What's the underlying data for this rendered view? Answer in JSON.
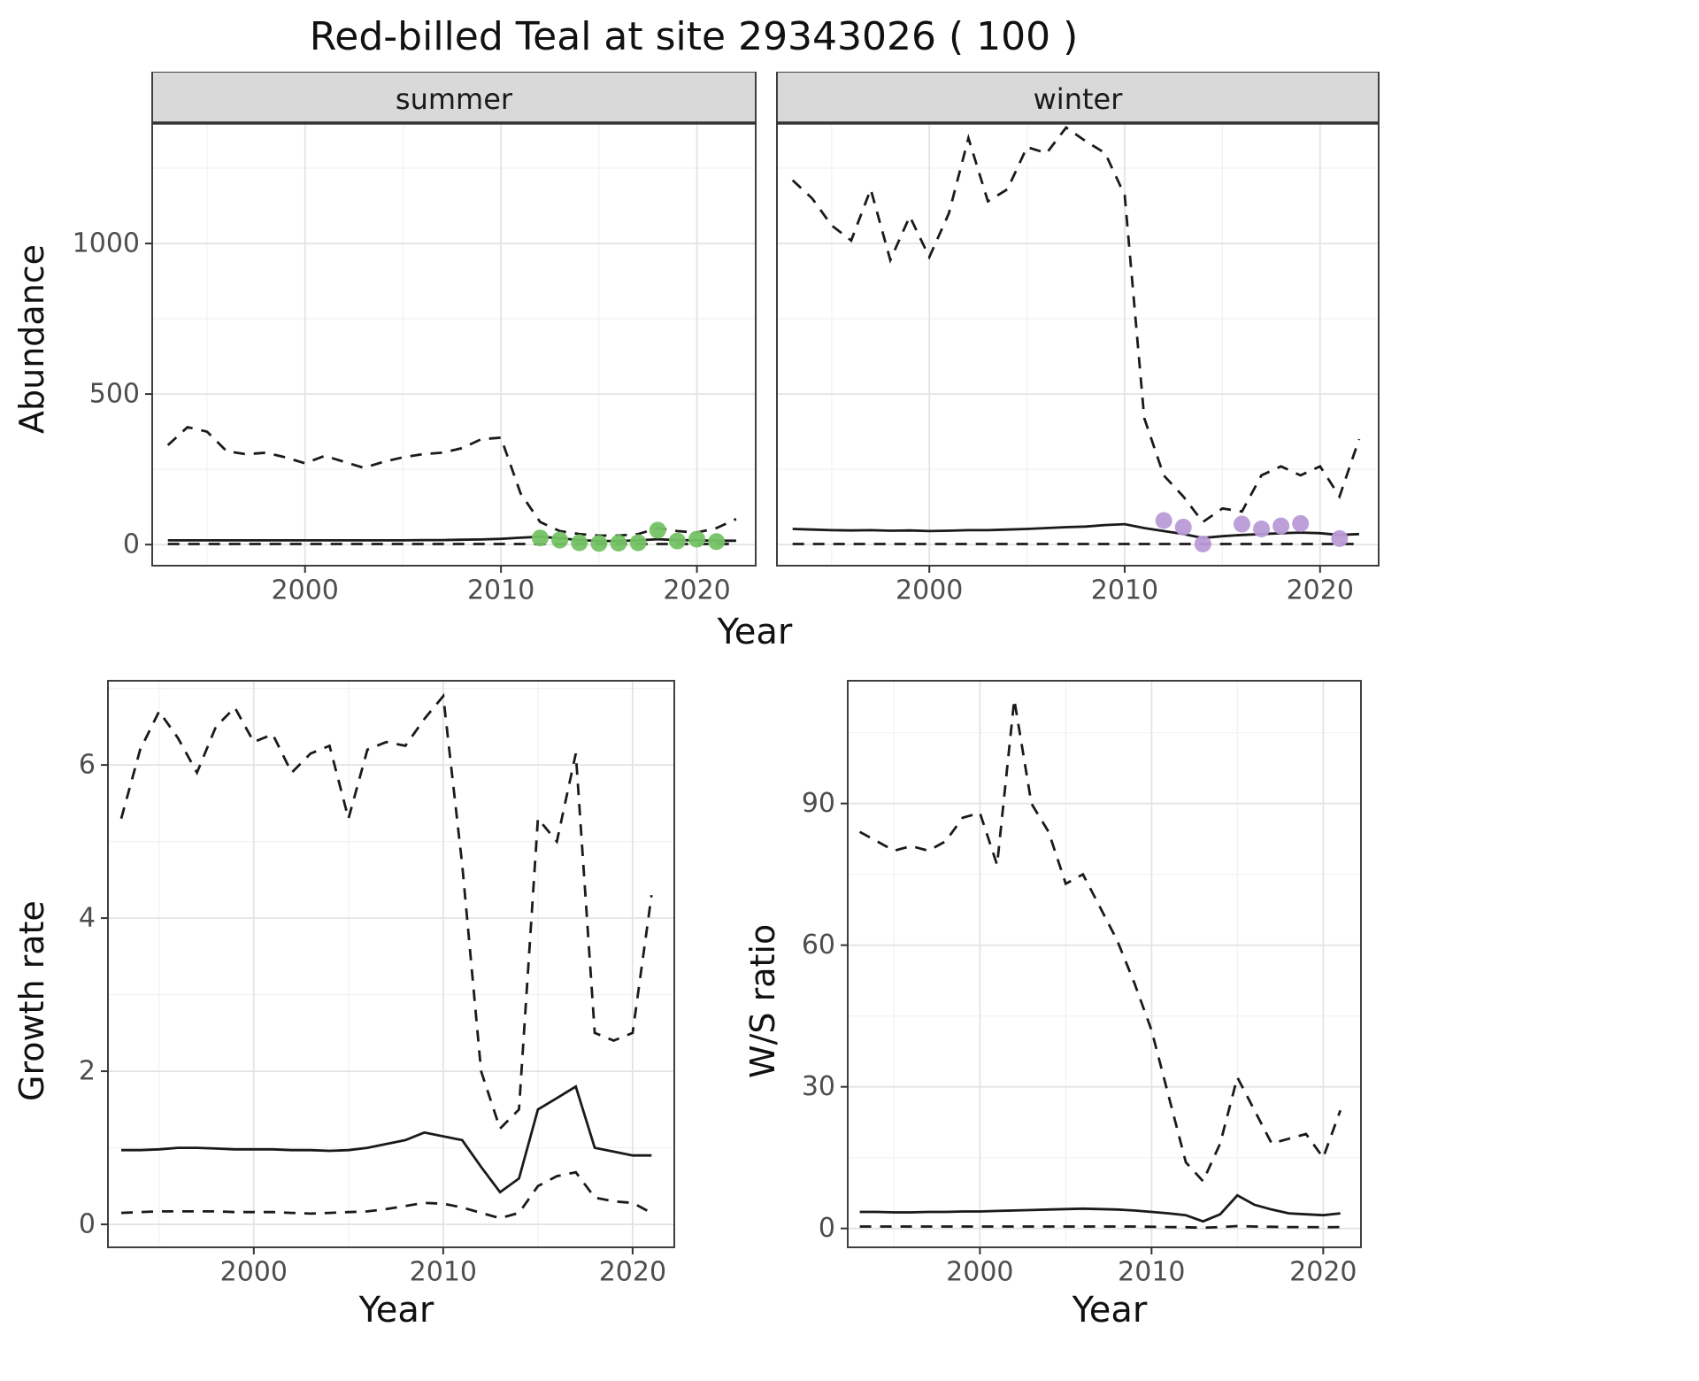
{
  "title": "Red-billed Teal at site 29343026 ( 100 )",
  "colors": {
    "line": "#1a1a1a",
    "grid_major": "#e4e4e4",
    "grid_minor": "#f2f2f2",
    "strip_bg": "#d9d9d9",
    "panel_border": "#3f3f3f",
    "tick_mark": "#333333",
    "tick_text": "#4d4d4d",
    "summer_points": "#74c365",
    "winter_points": "#b99bd8"
  },
  "axis": {
    "top_ylabel": "Abundance",
    "top_xlabel": "Year",
    "bottom_left_ylabel": "Growth rate",
    "bottom_left_xlabel": "Year",
    "bottom_right_ylabel": "W/S ratio",
    "bottom_right_xlabel": "Year"
  },
  "chart_data": [
    {
      "id": "abundance-summer",
      "type": "line",
      "facet_label": "summer",
      "xlabel": "Year",
      "ylabel": "Abundance",
      "xlim": [
        1992.2,
        2023.0
      ],
      "ylim": [
        -70,
        1400
      ],
      "xticks": [
        2000,
        2010,
        2020
      ],
      "yticks": [
        0,
        500,
        1000
      ],
      "x": [
        1993,
        1994,
        1995,
        1996,
        1997,
        1998,
        1999,
        2000,
        2001,
        2002,
        2003,
        2004,
        2005,
        2006,
        2007,
        2008,
        2009,
        2010,
        2011,
        2012,
        2013,
        2014,
        2015,
        2016,
        2017,
        2018,
        2019,
        2020,
        2021,
        2022
      ],
      "series": [
        {
          "name": "upper_ci",
          "linetype": "dashed",
          "values": [
            330,
            390,
            375,
            310,
            300,
            305,
            290,
            270,
            295,
            275,
            255,
            275,
            290,
            300,
            305,
            320,
            350,
            355,
            170,
            75,
            45,
            35,
            30,
            30,
            35,
            55,
            45,
            40,
            55,
            85
          ]
        },
        {
          "name": "estimate",
          "linetype": "solid",
          "values": [
            14,
            14,
            14,
            14,
            14,
            14,
            14,
            14,
            14,
            14,
            14,
            14,
            14,
            15,
            15,
            16,
            17,
            19,
            23,
            26,
            21,
            15,
            12,
            12,
            14,
            18,
            15,
            14,
            13,
            13
          ]
        },
        {
          "name": "lower_ci",
          "linetype": "dashed",
          "values": [
            2,
            2,
            2,
            2,
            2,
            2,
            2,
            2,
            2,
            2,
            2,
            2,
            2,
            2,
            2,
            2,
            2,
            2,
            2,
            2,
            2,
            2,
            2,
            2,
            2,
            2,
            2,
            2,
            2,
            2
          ]
        }
      ],
      "points": {
        "name": "observed-counts",
        "color_key": "summer_points",
        "x": [
          2012,
          2013,
          2014,
          2015,
          2016,
          2017,
          2018,
          2019,
          2020,
          2021
        ],
        "y": [
          22,
          15,
          6,
          4,
          5,
          6,
          48,
          12,
          18,
          10
        ]
      }
    },
    {
      "id": "abundance-winter",
      "type": "line",
      "facet_label": "winter",
      "xlabel": "Year",
      "ylabel": "Abundance",
      "xlim": [
        1992.2,
        2023.0
      ],
      "ylim": [
        -70,
        1400
      ],
      "xticks": [
        2000,
        2010,
        2020
      ],
      "yticks": [
        0,
        500,
        1000
      ],
      "x": [
        1993,
        1994,
        1995,
        1996,
        1997,
        1998,
        1999,
        2000,
        2001,
        2002,
        2003,
        2004,
        2005,
        2006,
        2007,
        2008,
        2009,
        2010,
        2011,
        2012,
        2013,
        2014,
        2015,
        2016,
        2017,
        2018,
        2019,
        2020,
        2021,
        2022
      ],
      "series": [
        {
          "name": "upper_ci",
          "linetype": "dashed",
          "values": [
            1210,
            1150,
            1060,
            1010,
            1180,
            945,
            1090,
            955,
            1100,
            1350,
            1140,
            1180,
            1320,
            1300,
            1385,
            1340,
            1300,
            1160,
            420,
            230,
            160,
            75,
            120,
            110,
            230,
            260,
            230,
            260,
            160,
            350
          ]
        },
        {
          "name": "estimate",
          "linetype": "solid",
          "values": [
            52,
            50,
            48,
            47,
            48,
            46,
            47,
            45,
            46,
            48,
            48,
            50,
            52,
            55,
            58,
            60,
            65,
            68,
            55,
            45,
            35,
            22,
            28,
            32,
            35,
            38,
            40,
            38,
            32,
            35
          ]
        },
        {
          "name": "lower_ci",
          "linetype": "dashed",
          "values": [
            2,
            2,
            2,
            2,
            2,
            2,
            2,
            2,
            2,
            2,
            2,
            2,
            2,
            2,
            2,
            2,
            2,
            2,
            2,
            2,
            2,
            2,
            2,
            2,
            2,
            2,
            2,
            2,
            2,
            2
          ]
        }
      ],
      "points": {
        "name": "observed-counts",
        "color_key": "winter_points",
        "x": [
          2012,
          2013,
          2014,
          2016,
          2017,
          2018,
          2019,
          2021
        ],
        "y": [
          80,
          58,
          2,
          68,
          52,
          62,
          70,
          20
        ]
      }
    },
    {
      "id": "growth-rate",
      "type": "line",
      "facet_label": null,
      "xlabel": "Year",
      "ylabel": "Growth rate",
      "xlim": [
        1992.3,
        2022.2
      ],
      "ylim": [
        -0.3,
        7.1
      ],
      "xticks": [
        2000,
        2010,
        2020
      ],
      "yticks": [
        0,
        2,
        4,
        6
      ],
      "x": [
        1993,
        1994,
        1995,
        1996,
        1997,
        1998,
        1999,
        2000,
        2001,
        2002,
        2003,
        2004,
        2005,
        2006,
        2007,
        2008,
        2009,
        2010,
        2011,
        2012,
        2013,
        2014,
        2015,
        2016,
        2017,
        2018,
        2019,
        2020,
        2021
      ],
      "series": [
        {
          "name": "upper_ci",
          "linetype": "dashed",
          "values": [
            5.3,
            6.2,
            6.7,
            6.35,
            5.9,
            6.5,
            6.75,
            6.3,
            6.4,
            5.9,
            6.15,
            6.25,
            5.3,
            6.2,
            6.3,
            6.25,
            6.6,
            6.9,
            4.7,
            2.0,
            1.25,
            1.5,
            5.3,
            5.0,
            6.15,
            2.5,
            2.4,
            2.5,
            4.3
          ]
        },
        {
          "name": "estimate",
          "linetype": "solid",
          "values": [
            0.97,
            0.97,
            0.98,
            1.0,
            1.0,
            0.99,
            0.98,
            0.98,
            0.98,
            0.97,
            0.97,
            0.96,
            0.97,
            1.0,
            1.05,
            1.1,
            1.2,
            1.15,
            1.1,
            0.75,
            0.42,
            0.6,
            1.5,
            1.65,
            1.8,
            1.0,
            0.95,
            0.9,
            0.9
          ]
        },
        {
          "name": "lower_ci",
          "linetype": "dashed",
          "values": [
            0.15,
            0.16,
            0.17,
            0.17,
            0.17,
            0.17,
            0.16,
            0.16,
            0.16,
            0.15,
            0.14,
            0.15,
            0.16,
            0.17,
            0.2,
            0.24,
            0.28,
            0.27,
            0.22,
            0.15,
            0.08,
            0.15,
            0.5,
            0.63,
            0.68,
            0.35,
            0.3,
            0.28,
            0.15
          ]
        }
      ],
      "points": null
    },
    {
      "id": "ws-ratio",
      "type": "line",
      "facet_label": null,
      "xlabel": "Year",
      "ylabel": "W/S ratio",
      "xlim": [
        1992.3,
        2022.2
      ],
      "ylim": [
        -4,
        116
      ],
      "xticks": [
        2000,
        2010,
        2020
      ],
      "yticks": [
        0,
        30,
        60,
        90
      ],
      "x": [
        1993,
        1994,
        1995,
        1996,
        1997,
        1998,
        1999,
        2000,
        2001,
        2002,
        2003,
        2004,
        2005,
        2006,
        2007,
        2008,
        2009,
        2010,
        2011,
        2012,
        2013,
        2014,
        2015,
        2016,
        2017,
        2018,
        2019,
        2020,
        2021
      ],
      "series": [
        {
          "name": "upper_ci",
          "linetype": "dashed",
          "values": [
            84,
            82,
            80,
            81,
            80,
            82,
            87,
            88,
            77,
            112,
            90,
            84,
            73,
            75,
            68,
            61,
            52,
            42,
            28,
            14,
            10,
            18,
            32,
            25,
            18,
            19,
            20,
            15,
            25
          ]
        },
        {
          "name": "estimate",
          "linetype": "solid",
          "values": [
            3.5,
            3.5,
            3.4,
            3.4,
            3.5,
            3.5,
            3.6,
            3.6,
            3.7,
            3.8,
            3.9,
            4.0,
            4.1,
            4.2,
            4.1,
            4.0,
            3.8,
            3.5,
            3.2,
            2.8,
            1.5,
            3.0,
            7.0,
            5.0,
            4.0,
            3.2,
            3.0,
            2.8,
            3.2
          ]
        },
        {
          "name": "lower_ci",
          "linetype": "dashed",
          "values": [
            0.4,
            0.4,
            0.4,
            0.4,
            0.4,
            0.4,
            0.4,
            0.4,
            0.4,
            0.4,
            0.4,
            0.4,
            0.4,
            0.4,
            0.4,
            0.4,
            0.4,
            0.35,
            0.3,
            0.25,
            0.15,
            0.3,
            0.5,
            0.4,
            0.35,
            0.3,
            0.3,
            0.25,
            0.3
          ]
        }
      ],
      "points": null
    }
  ]
}
